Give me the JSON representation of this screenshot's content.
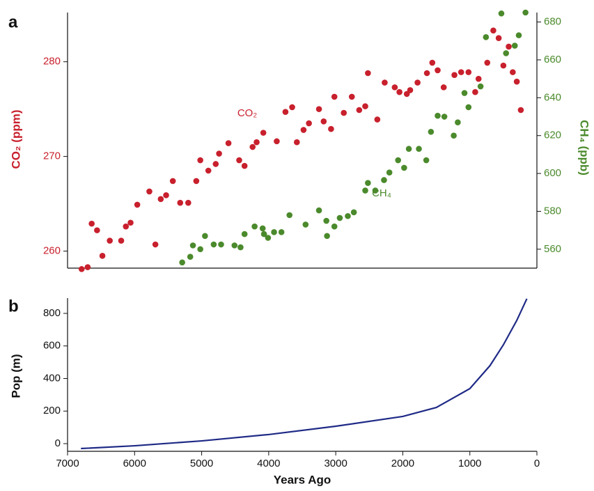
{
  "chart_data": [
    {
      "type": "scatter",
      "panel_label": "a",
      "y_label": "CO₂ (ppm)",
      "y2_label": "CH₄ (ppb)",
      "xlim": [
        7000,
        0
      ],
      "ylim": [
        258.2,
        285.2
      ],
      "yticks": [
        260,
        270,
        280
      ],
      "y2lim": [
        550,
        685
      ],
      "y2ticks": [
        560,
        580,
        600,
        620,
        640,
        660,
        680
      ],
      "y_color": "#c8202d",
      "y2_color": "#4b8a2c",
      "series": [
        {
          "name": "CO₂",
          "color": "#c8202d",
          "x": [
            6790,
            6700,
            6640,
            6560,
            6480,
            6370,
            6200,
            6130,
            6060,
            5960,
            5780,
            5690,
            5610,
            5530,
            5430,
            5320,
            5200,
            5080,
            5020,
            4900,
            4790,
            4740,
            4600,
            4440,
            4360,
            4240,
            4180,
            4080,
            3880,
            3750,
            3650,
            3580,
            3480,
            3400,
            3250,
            3180,
            3070,
            3020,
            2880,
            2760,
            2650,
            2560,
            2520,
            2380,
            2270,
            2120,
            2050,
            1940,
            1890,
            1780,
            1640,
            1560,
            1480,
            1390,
            1230,
            1130,
            1020,
            920,
            870,
            740,
            650,
            570,
            500,
            420,
            360,
            300,
            240
          ],
          "values": [
            258.1,
            258.3,
            262.9,
            262.2,
            259.5,
            261.1,
            261.1,
            262.6,
            263.0,
            264.9,
            266.3,
            260.7,
            265.5,
            265.9,
            267.4,
            265.1,
            265.1,
            267.4,
            269.6,
            268.5,
            269.2,
            270.3,
            271.4,
            269.6,
            269.0,
            271.0,
            271.5,
            272.5,
            271.6,
            274.7,
            275.2,
            271.5,
            272.8,
            273.5,
            275.0,
            273.7,
            272.9,
            276.3,
            274.6,
            276.3,
            274.9,
            275.3,
            278.8,
            273.9,
            277.8,
            277.3,
            276.8,
            276.6,
            277.0,
            277.8,
            278.8,
            279.9,
            279.1,
            277.3,
            278.6,
            278.9,
            278.9,
            276.8,
            278.2,
            279.9,
            283.3,
            282.5,
            279.6,
            281.6,
            278.9,
            277.9,
            274.9
          ]
        },
        {
          "name": "CH₄",
          "color": "#4b8a2c",
          "axis": "y2",
          "x": [
            5290,
            5170,
            5130,
            5020,
            4950,
            4820,
            4710,
            4510,
            4420,
            4360,
            4210,
            4090,
            4070,
            4010,
            3920,
            3810,
            3690,
            3450,
            3250,
            3140,
            3130,
            3020,
            2940,
            2820,
            2730,
            2560,
            2520,
            2410,
            2280,
            2200,
            2070,
            1980,
            1910,
            1760,
            1650,
            1580,
            1480,
            1380,
            1240,
            1180,
            1080,
            1020,
            840,
            760,
            530,
            460,
            330,
            270,
            170
          ],
          "values": [
            553,
            556,
            562,
            560,
            567,
            562.5,
            562.5,
            562,
            561,
            568,
            572,
            571,
            568,
            566,
            569,
            569,
            578,
            573,
            580.5,
            575,
            567,
            572,
            576.5,
            577.5,
            579.5,
            591,
            595,
            591,
            596.5,
            600.5,
            607,
            603,
            613,
            613,
            607,
            622,
            630.5,
            630,
            620,
            627,
            642.5,
            635,
            646,
            672,
            684.5,
            663.5,
            667.5,
            673,
            685
          ]
        }
      ]
    },
    {
      "type": "line",
      "panel_label": "b",
      "y_label": "Pop (m)",
      "x_label": "Years Ago",
      "xlim": [
        7000,
        0
      ],
      "xticks": [
        7000,
        6000,
        5000,
        4000,
        3000,
        2000,
        1000,
        0
      ],
      "ylim": [
        -47,
        894
      ],
      "yticks": [
        0,
        200,
        400,
        600,
        800
      ],
      "series": [
        {
          "color": "#1f2a86",
          "x": [
            6800,
            6000,
            5000,
            4000,
            3000,
            2000,
            1500,
            1000,
            700,
            500,
            300,
            150
          ],
          "values": [
            -30,
            -13,
            17,
            56,
            107,
            167,
            222,
            338,
            479,
            607,
            757,
            890
          ]
        }
      ]
    }
  ]
}
